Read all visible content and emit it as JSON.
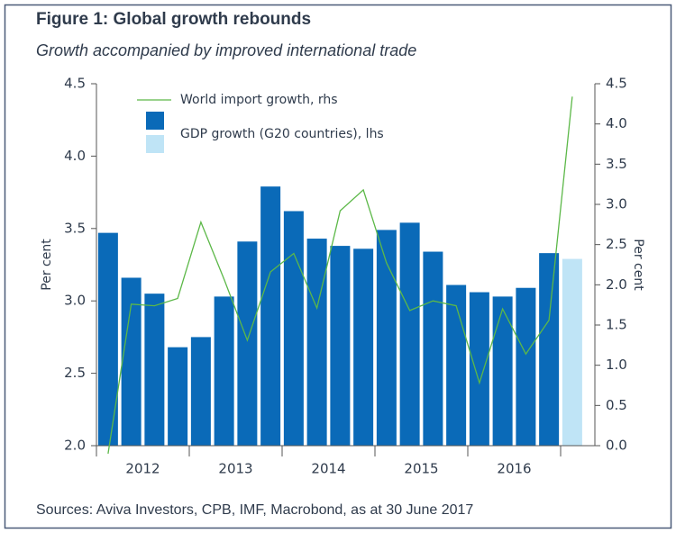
{
  "chart_data": {
    "type": "bar-line",
    "title": "Figure 1: Global growth rebounds",
    "subtitle": "Growth accompanied by improved international trade",
    "source": "Sources: Aviva Investors, CPB, IMF, Macrobond, as at 30 June 2017",
    "ylabel": "Per cent",
    "y2label": "Per cent",
    "categories": [
      null,
      null,
      null,
      null,
      null,
      null,
      null,
      null,
      null,
      null,
      null,
      null,
      null,
      null,
      null,
      null,
      null,
      null,
      null,
      null,
      null
    ],
    "year_labels": [
      "2012",
      "2013",
      "2014",
      "2015",
      "2016"
    ],
    "ylim": [
      2.0,
      4.5
    ],
    "yticks": [
      {
        "value": 2,
        "label": "2.0"
      },
      2.5,
      {
        "value": 3,
        "label": "3.0"
      },
      3.5,
      {
        "value": 4,
        "label": "4.0"
      },
      4.5
    ],
    "y2lim": [
      0,
      4.5
    ],
    "y2ticks": [
      {
        "value": 0,
        "label": "0.0"
      },
      0.5,
      {
        "value": 1,
        "label": "1.0"
      },
      1.5,
      {
        "value": 2,
        "label": "2.0"
      },
      2.5,
      {
        "value": 3,
        "label": "3.0"
      },
      3.5,
      {
        "value": 4,
        "label": "4.0"
      },
      4.5
    ],
    "series": [
      {
        "name": "GDP growth (G20 countries), lhs",
        "type": "bar",
        "color": "#0a6ab8",
        "forecast_color": "#bfe4f6",
        "values": [
          3.47,
          3.16,
          3.05,
          2.68,
          2.75,
          3.03,
          3.41,
          3.79,
          3.62,
          3.43,
          3.38,
          3.36,
          3.49,
          3.54,
          3.34,
          3.11,
          3.06,
          3.03,
          3.09,
          3.33,
          3.29
        ]
      },
      {
        "name": "World import growth, rhs",
        "type": "line",
        "axis": "y2",
        "color": "#5cb848",
        "values": [
          -0.1,
          1.76,
          1.74,
          1.83,
          2.78,
          2.07,
          1.31,
          2.16,
          2.39,
          1.71,
          2.92,
          3.18,
          2.27,
          1.68,
          1.8,
          1.74,
          0.78,
          1.7,
          1.14,
          1.56,
          4.34
        ]
      }
    ]
  }
}
